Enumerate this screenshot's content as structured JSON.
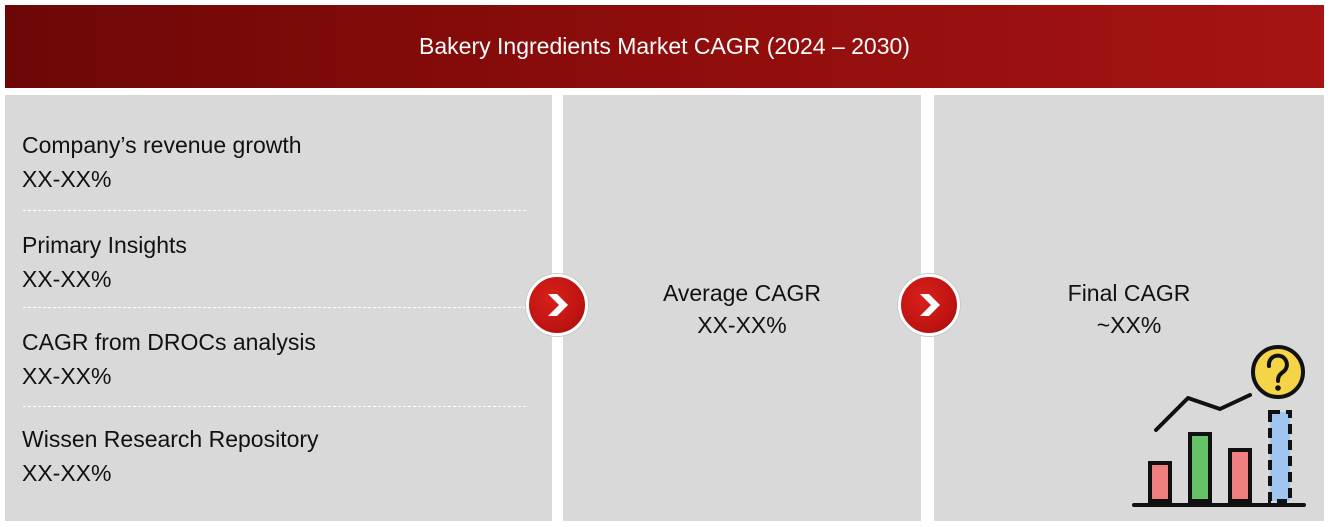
{
  "header": {
    "title": "Bakery Ingredients Market CAGR (2024 – 2030)"
  },
  "left_panel": {
    "items": [
      {
        "label": "Company’s revenue growth",
        "value": "XX-XX%"
      },
      {
        "label": "Primary Insights",
        "value": "XX-XX%"
      },
      {
        "label": "CAGR from DROCs analysis",
        "value": "XX-XX%"
      },
      {
        "label": "Wissen Research Repository",
        "value": "XX-XX%"
      }
    ]
  },
  "middle_panel": {
    "label": "Average CAGR",
    "value": "XX-XX%"
  },
  "right_panel": {
    "label": "Final CAGR",
    "value": "~XX%"
  },
  "icons": {
    "arrow": "chevron-right-icon",
    "chart": "bar-chart-question-icon"
  },
  "colors": {
    "header": "#8e0d0c",
    "panel": "#d9d9d9",
    "arrow": "#c01412",
    "bar_red": "#f08080",
    "bar_green": "#66c266",
    "bar_blue": "#9ec6f0",
    "question": "#f5d547"
  }
}
